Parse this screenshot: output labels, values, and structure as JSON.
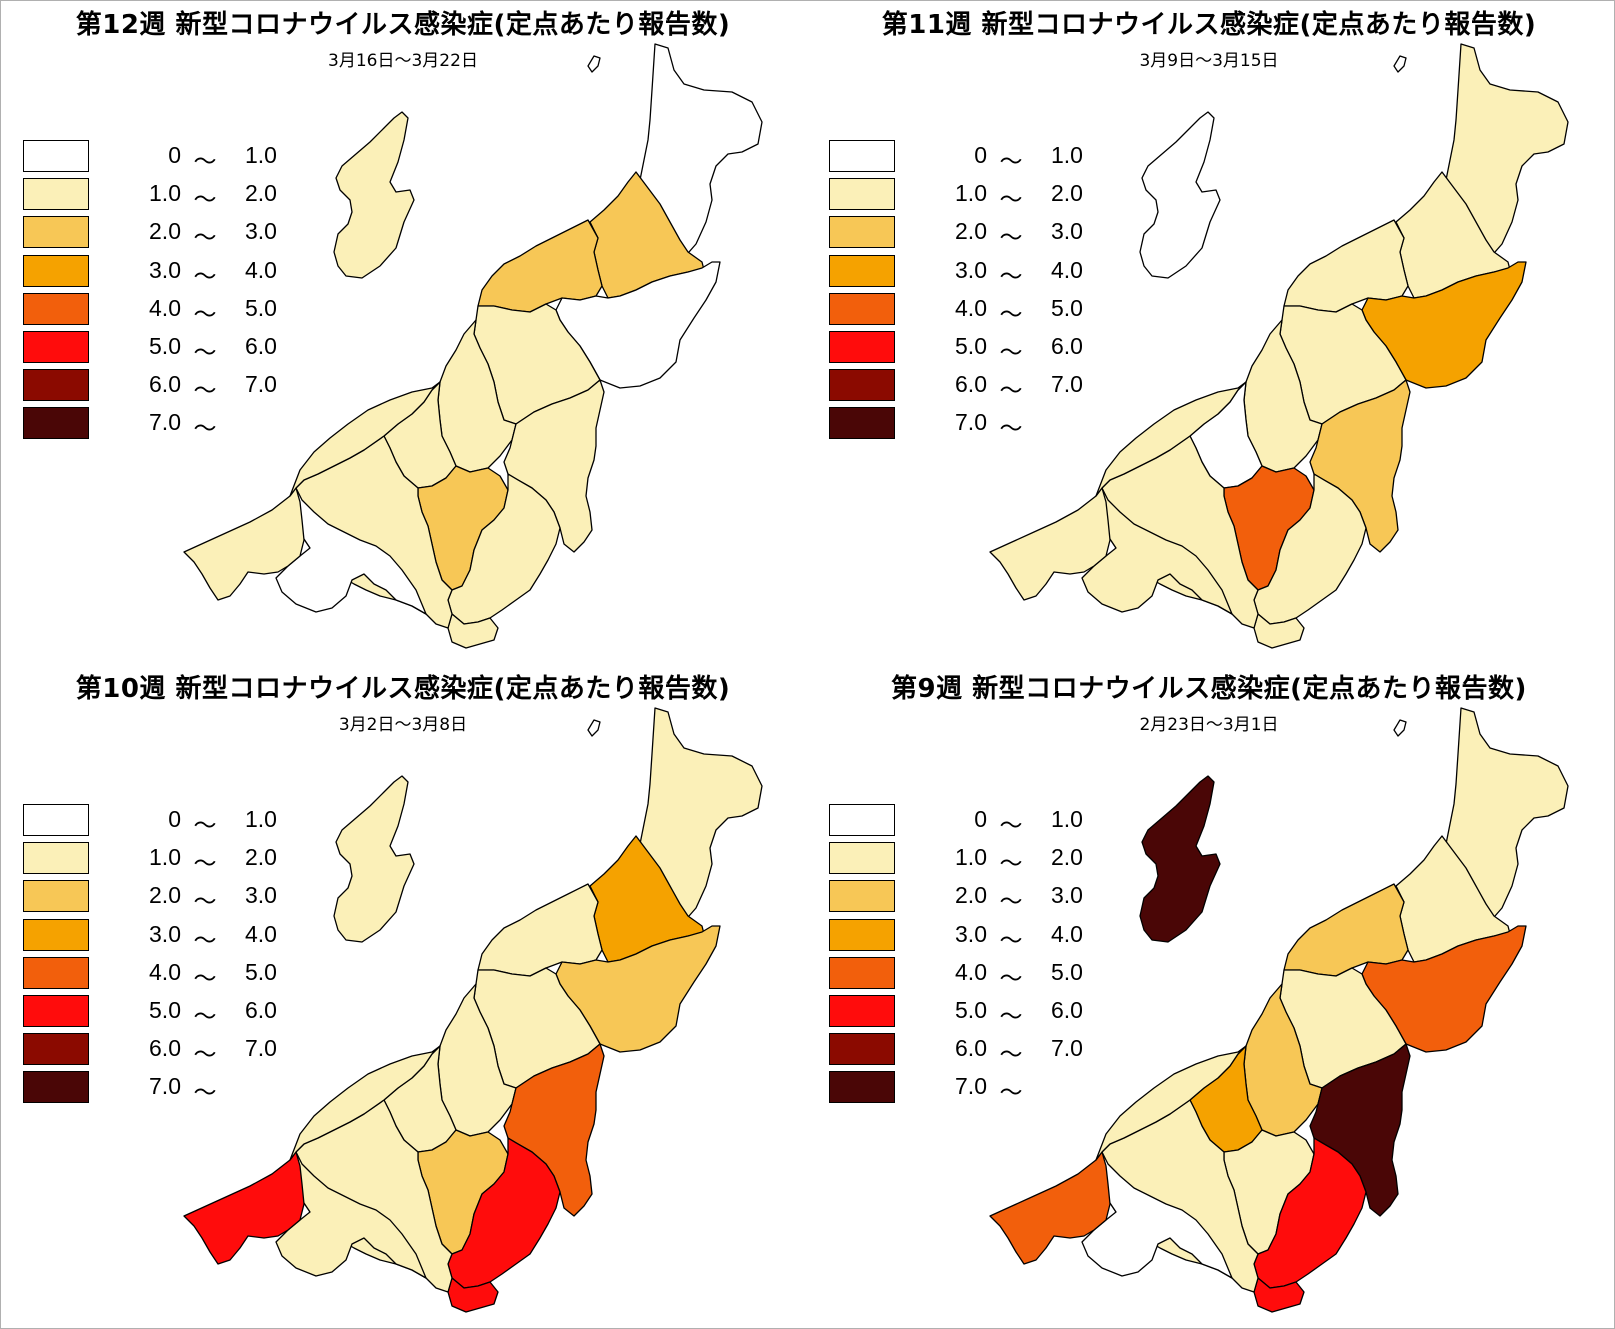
{
  "legend": {
    "items": [
      {
        "lo": "0",
        "tilde": "〜",
        "hi": "1.0",
        "color": "#ffffff"
      },
      {
        "lo": "1.0",
        "tilde": "〜",
        "hi": "2.0",
        "color": "#fbf0b8"
      },
      {
        "lo": "2.0",
        "tilde": "〜",
        "hi": "3.0",
        "color": "#f7c756"
      },
      {
        "lo": "3.0",
        "tilde": "〜",
        "hi": "4.0",
        "color": "#f5a200"
      },
      {
        "lo": "4.0",
        "tilde": "〜",
        "hi": "5.0",
        "color": "#f25f0c"
      },
      {
        "lo": "5.0",
        "tilde": "〜",
        "hi": "6.0",
        "color": "#ff0c0c"
      },
      {
        "lo": "6.0",
        "tilde": "〜",
        "hi": "7.0",
        "color": "#8b0a00"
      },
      {
        "lo": "7.0",
        "tilde": "〜",
        "hi": "",
        "color": "#4a0606"
      }
    ]
  },
  "panels": [
    {
      "title": "第12週 新型コロナウイルス感染症(定点あたり報告数)",
      "subtitle": "3月16日〜3月22日",
      "regions": {
        "sado": "#fbf0b8",
        "murakami": "#ffffff",
        "shibata": "#f7c756",
        "niigata_city": "#f7c756",
        "sanjo": "#fbf0b8",
        "aga": "#ffffff",
        "nagaoka": "#fbf0b8",
        "kashiwazaki": "#fbf0b8",
        "tokamachi": "#f7c756",
        "minamiuonuma": "#fbf0b8",
        "uonuma": "#fbf0b8",
        "yuzawa": "#fbf0b8",
        "itoigawa": "#fbf0b8",
        "joetsu": "#ffffff",
        "west_central": "#fbf0b8",
        "north_coast": "#fbf0b8"
      }
    },
    {
      "title": "第11週 新型コロナウイルス感染症(定点あたり報告数)",
      "subtitle": "3月9日〜3月15日",
      "regions": {
        "sado": "#ffffff",
        "murakami": "#fbf0b8",
        "shibata": "#fbf0b8",
        "niigata_city": "#fbf0b8",
        "sanjo": "#fbf0b8",
        "aga": "#f5a200",
        "nagaoka": "#fbf0b8",
        "kashiwazaki": "#ffffff",
        "tokamachi": "#f25f0c",
        "minamiuonuma": "#fbf0b8",
        "uonuma": "#f7c756",
        "yuzawa": "#fbf0b8",
        "itoigawa": "#fbf0b8",
        "joetsu": "#fbf0b8",
        "west_central": "#fbf0b8",
        "north_coast": "#fbf0b8"
      }
    },
    {
      "title": "第10週 新型コロナウイルス感染症(定点あたり報告数)",
      "subtitle": "3月2日〜3月8日",
      "regions": {
        "sado": "#fbf0b8",
        "murakami": "#fbf0b8",
        "shibata": "#f5a200",
        "niigata_city": "#fbf0b8",
        "sanjo": "#fbf0b8",
        "aga": "#f7c756",
        "nagaoka": "#fbf0b8",
        "kashiwazaki": "#fbf0b8",
        "tokamachi": "#f7c756",
        "minamiuonuma": "#ff0c0c",
        "uonuma": "#f25f0c",
        "yuzawa": "#ff0c0c",
        "itoigawa": "#ff0c0c",
        "joetsu": "#fbf0b8",
        "west_central": "#fbf0b8",
        "north_coast": "#fbf0b8"
      }
    },
    {
      "title": "第9週 新型コロナウイルス感染症(定点あたり報告数)",
      "subtitle": "2月23日〜3月1日",
      "regions": {
        "sado": "#4a0606",
        "murakami": "#fbf0b8",
        "shibata": "#fbf0b8",
        "niigata_city": "#f7c756",
        "sanjo": "#fbf0b8",
        "aga": "#f25f0c",
        "nagaoka": "#f7c756",
        "kashiwazaki": "#f5a200",
        "tokamachi": "#fbf0b8",
        "minamiuonuma": "#ff0c0c",
        "uonuma": "#4a0606",
        "yuzawa": "#ff0c0c",
        "itoigawa": "#f25f0c",
        "joetsu": "#ffffff",
        "west_central": "#fbf0b8",
        "north_coast": "#fbf0b8"
      }
    }
  ]
}
